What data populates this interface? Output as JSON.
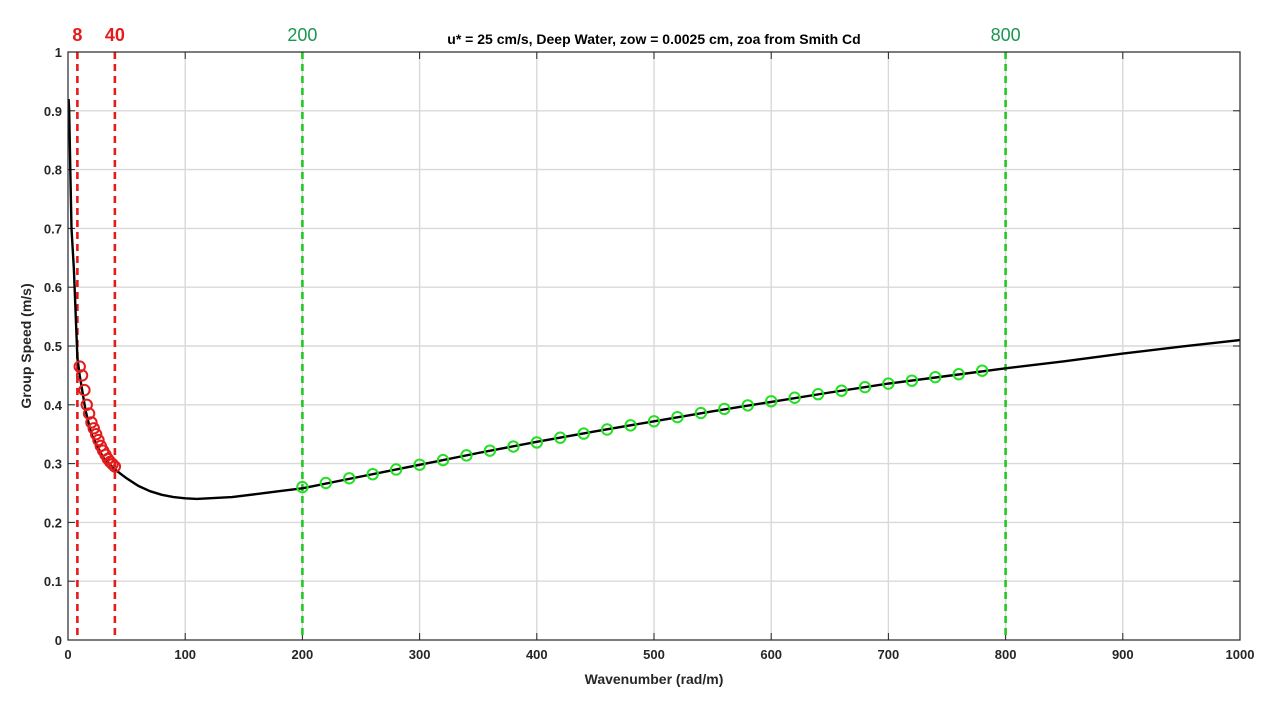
{
  "chart_data": {
    "type": "line",
    "title": "u* = 25 cm/s,  Deep Water, zow = 0.0025 cm, zoa from Smith Cd",
    "xlabel": "Wavenumber (rad/m)",
    "ylabel": "Group Speed (m/s)",
    "xlim": [
      0,
      1000
    ],
    "ylim": [
      0,
      1
    ],
    "x_ticks": [
      "0",
      "100",
      "200",
      "300",
      "400",
      "500",
      "600",
      "700",
      "800",
      "900",
      "1000"
    ],
    "y_ticks": [
      "0",
      "0.1",
      "0.2",
      "0.3",
      "0.4",
      "0.5",
      "0.6",
      "0.7",
      "0.8",
      "0.9",
      "1"
    ],
    "grid": true,
    "series": [
      {
        "style": "solid-line",
        "color": "#000000",
        "x": [
          0.5,
          1,
          2,
          3,
          5,
          8,
          10,
          15,
          20,
          25,
          30,
          35,
          40,
          50,
          60,
          70,
          80,
          90,
          100,
          110,
          120,
          140,
          160,
          180,
          200,
          250,
          300,
          350,
          400,
          450,
          500,
          550,
          600,
          650,
          700,
          750,
          800,
          850,
          900,
          950,
          1000
        ],
        "y": [
          0.92,
          0.9,
          0.8,
          0.7,
          0.63,
          0.48,
          0.45,
          0.39,
          0.35,
          0.33,
          0.31,
          0.3,
          0.29,
          0.275,
          0.262,
          0.253,
          0.247,
          0.243,
          0.241,
          0.24,
          0.241,
          0.243,
          0.248,
          0.253,
          0.258,
          0.278,
          0.298,
          0.318,
          0.337,
          0.355,
          0.372,
          0.389,
          0.405,
          0.421,
          0.436,
          0.449,
          0.462,
          0.474,
          0.487,
          0.499,
          0.51
        ]
      },
      {
        "style": "circle-markers",
        "color": "#e51b1b",
        "x": [
          10,
          12,
          14,
          16,
          18,
          20,
          22,
          24,
          26,
          28,
          30,
          32,
          34,
          36,
          38,
          40
        ],
        "y": [
          0.465,
          0.45,
          0.425,
          0.4,
          0.385,
          0.37,
          0.36,
          0.35,
          0.34,
          0.33,
          0.322,
          0.315,
          0.308,
          0.303,
          0.299,
          0.295
        ]
      },
      {
        "style": "circle-markers",
        "color": "#22e022",
        "x": [
          200,
          220,
          240,
          260,
          280,
          300,
          320,
          340,
          360,
          380,
          400,
          420,
          440,
          460,
          480,
          500,
          520,
          540,
          560,
          580,
          600,
          620,
          640,
          660,
          680,
          700,
          720,
          740,
          760,
          780
        ],
        "y": [
          0.26,
          0.267,
          0.275,
          0.282,
          0.29,
          0.298,
          0.306,
          0.314,
          0.322,
          0.329,
          0.336,
          0.344,
          0.351,
          0.358,
          0.365,
          0.372,
          0.379,
          0.386,
          0.393,
          0.399,
          0.406,
          0.412,
          0.418,
          0.424,
          0.43,
          0.436,
          0.441,
          0.447,
          0.452,
          0.458
        ]
      }
    ],
    "vertical_markers": [
      {
        "x": 8,
        "label": "8",
        "color": "#e51b1b"
      },
      {
        "x": 40,
        "label": "40",
        "color": "#e51b1b"
      },
      {
        "x": 200,
        "label": "200",
        "color": "#22c922",
        "label_color": "#1a9650"
      },
      {
        "x": 800,
        "label": "800",
        "color": "#22c922",
        "label_color": "#1a9650"
      }
    ]
  }
}
